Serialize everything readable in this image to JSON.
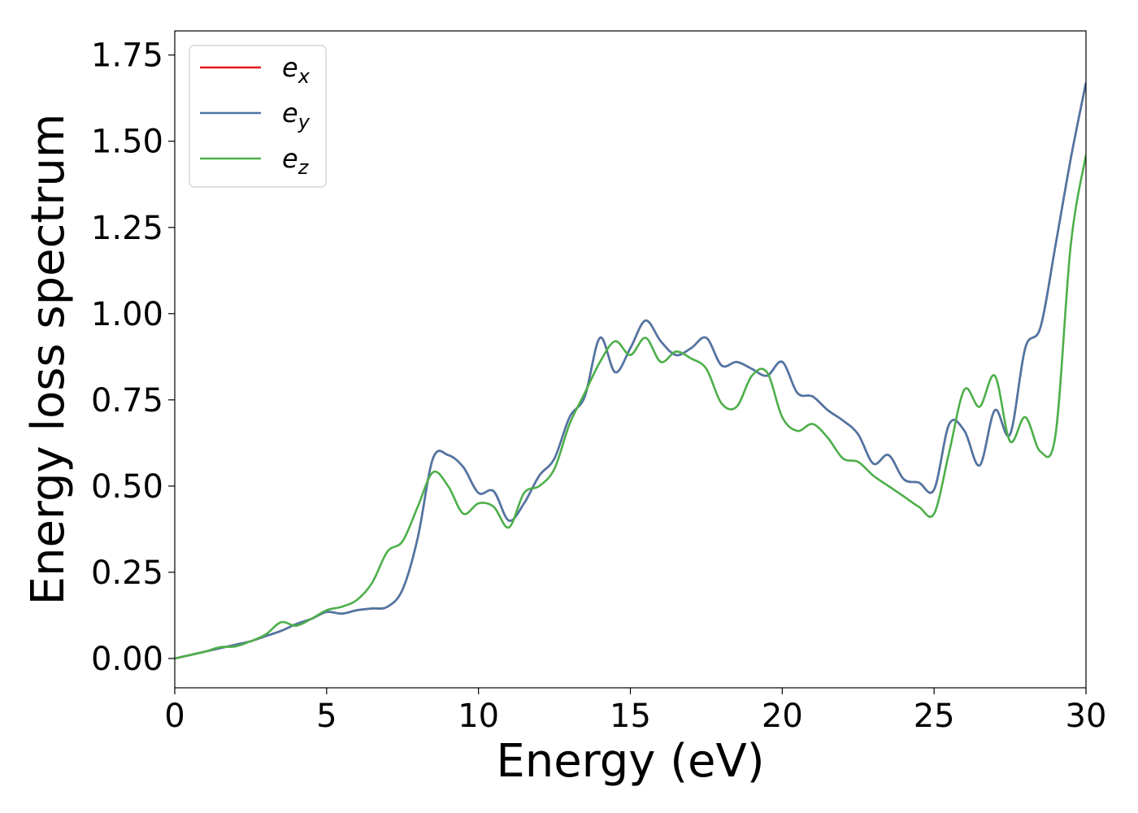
{
  "chart_data": {
    "type": "line",
    "title": "",
    "xlabel": "Energy (eV)",
    "ylabel": "Energy loss spectrum",
    "xlim": [
      0,
      30
    ],
    "ylim": [
      -0.085,
      1.82
    ],
    "xticks": [
      0,
      5,
      10,
      15,
      20,
      25,
      30
    ],
    "xtick_labels": [
      "0",
      "5",
      "10",
      "15",
      "20",
      "25",
      "30"
    ],
    "yticks": [
      0,
      0.25,
      0.5,
      0.75,
      1.0,
      1.25,
      1.5,
      1.75
    ],
    "ytick_labels": [
      "0.00",
      "0.25",
      "0.50",
      "0.75",
      "1.00",
      "1.25",
      "1.50",
      "1.75"
    ],
    "grid": false,
    "legend_position": "top-left",
    "series": [
      {
        "name": "e",
        "subscript": "x",
        "color": "#e41a1c",
        "points": [
          [
            0,
            0
          ],
          [
            0.5,
            0.01
          ],
          [
            1,
            0.02
          ],
          [
            1.5,
            0.03
          ],
          [
            2,
            0.04
          ],
          [
            2.5,
            0.05
          ],
          [
            3,
            0.065
          ],
          [
            3.5,
            0.08
          ],
          [
            4,
            0.1
          ],
          [
            4.5,
            0.115
          ],
          [
            5,
            0.135
          ],
          [
            5.5,
            0.13
          ],
          [
            6,
            0.14
          ],
          [
            6.5,
            0.145
          ],
          [
            7,
            0.15
          ],
          [
            7.5,
            0.2
          ],
          [
            8,
            0.35
          ],
          [
            8.5,
            0.58
          ],
          [
            9,
            0.59
          ],
          [
            9.5,
            0.555
          ],
          [
            10,
            0.48
          ],
          [
            10.5,
            0.485
          ],
          [
            11,
            0.4
          ],
          [
            11.5,
            0.45
          ],
          [
            12,
            0.53
          ],
          [
            12.5,
            0.58
          ],
          [
            13,
            0.7
          ],
          [
            13.5,
            0.76
          ],
          [
            14,
            0.93
          ],
          [
            14.5,
            0.83
          ],
          [
            15,
            0.9
          ],
          [
            15.5,
            0.98
          ],
          [
            16,
            0.92
          ],
          [
            16.5,
            0.88
          ],
          [
            17,
            0.9
          ],
          [
            17.5,
            0.93
          ],
          [
            18,
            0.85
          ],
          [
            18.5,
            0.86
          ],
          [
            19,
            0.84
          ],
          [
            19.5,
            0.82
          ],
          [
            20,
            0.86
          ],
          [
            20.5,
            0.77
          ],
          [
            21,
            0.76
          ],
          [
            21.5,
            0.72
          ],
          [
            22,
            0.69
          ],
          [
            22.5,
            0.65
          ],
          [
            23,
            0.565
          ],
          [
            23.5,
            0.59
          ],
          [
            24,
            0.52
          ],
          [
            24.5,
            0.51
          ],
          [
            25,
            0.49
          ],
          [
            25.5,
            0.68
          ],
          [
            26,
            0.66
          ],
          [
            26.5,
            0.56
          ],
          [
            27,
            0.72
          ],
          [
            27.5,
            0.65
          ],
          [
            28,
            0.9
          ],
          [
            28.5,
            0.96
          ],
          [
            29,
            1.2
          ],
          [
            29.5,
            1.45
          ],
          [
            30,
            1.67
          ]
        ]
      },
      {
        "name": "e",
        "subscript": "y",
        "color": "#4c77a7",
        "points": [
          [
            0,
            0
          ],
          [
            0.5,
            0.01
          ],
          [
            1,
            0.02
          ],
          [
            1.5,
            0.03
          ],
          [
            2,
            0.04
          ],
          [
            2.5,
            0.05
          ],
          [
            3,
            0.065
          ],
          [
            3.5,
            0.08
          ],
          [
            4,
            0.1
          ],
          [
            4.5,
            0.115
          ],
          [
            5,
            0.135
          ],
          [
            5.5,
            0.13
          ],
          [
            6,
            0.14
          ],
          [
            6.5,
            0.145
          ],
          [
            7,
            0.15
          ],
          [
            7.5,
            0.2
          ],
          [
            8,
            0.35
          ],
          [
            8.5,
            0.58
          ],
          [
            9,
            0.59
          ],
          [
            9.5,
            0.555
          ],
          [
            10,
            0.48
          ],
          [
            10.5,
            0.485
          ],
          [
            11,
            0.4
          ],
          [
            11.5,
            0.45
          ],
          [
            12,
            0.53
          ],
          [
            12.5,
            0.58
          ],
          [
            13,
            0.7
          ],
          [
            13.5,
            0.76
          ],
          [
            14,
            0.93
          ],
          [
            14.5,
            0.83
          ],
          [
            15,
            0.9
          ],
          [
            15.5,
            0.98
          ],
          [
            16,
            0.92
          ],
          [
            16.5,
            0.88
          ],
          [
            17,
            0.9
          ],
          [
            17.5,
            0.93
          ],
          [
            18,
            0.85
          ],
          [
            18.5,
            0.86
          ],
          [
            19,
            0.84
          ],
          [
            19.5,
            0.82
          ],
          [
            20,
            0.86
          ],
          [
            20.5,
            0.77
          ],
          [
            21,
            0.76
          ],
          [
            21.5,
            0.72
          ],
          [
            22,
            0.69
          ],
          [
            22.5,
            0.65
          ],
          [
            23,
            0.565
          ],
          [
            23.5,
            0.59
          ],
          [
            24,
            0.52
          ],
          [
            24.5,
            0.51
          ],
          [
            25,
            0.49
          ],
          [
            25.5,
            0.68
          ],
          [
            26,
            0.66
          ],
          [
            26.5,
            0.56
          ],
          [
            27,
            0.72
          ],
          [
            27.5,
            0.65
          ],
          [
            28,
            0.9
          ],
          [
            28.5,
            0.96
          ],
          [
            29,
            1.2
          ],
          [
            29.5,
            1.45
          ],
          [
            30,
            1.67
          ]
        ]
      },
      {
        "name": "e",
        "subscript": "z",
        "color": "#4daf4a",
        "points": [
          [
            0,
            0
          ],
          [
            0.5,
            0.01
          ],
          [
            1,
            0.02
          ],
          [
            1.5,
            0.033
          ],
          [
            2,
            0.035
          ],
          [
            2.5,
            0.05
          ],
          [
            3,
            0.07
          ],
          [
            3.5,
            0.105
          ],
          [
            4,
            0.095
          ],
          [
            4.5,
            0.115
          ],
          [
            5,
            0.14
          ],
          [
            5.5,
            0.15
          ],
          [
            6,
            0.17
          ],
          [
            6.5,
            0.22
          ],
          [
            7,
            0.31
          ],
          [
            7.5,
            0.34
          ],
          [
            8,
            0.44
          ],
          [
            8.5,
            0.54
          ],
          [
            9,
            0.5
          ],
          [
            9.5,
            0.42
          ],
          [
            10,
            0.45
          ],
          [
            10.5,
            0.44
          ],
          [
            11,
            0.38
          ],
          [
            11.5,
            0.48
          ],
          [
            12,
            0.5
          ],
          [
            12.5,
            0.55
          ],
          [
            13,
            0.68
          ],
          [
            13.5,
            0.77
          ],
          [
            14,
            0.86
          ],
          [
            14.5,
            0.92
          ],
          [
            15,
            0.88
          ],
          [
            15.5,
            0.93
          ],
          [
            16,
            0.86
          ],
          [
            16.5,
            0.89
          ],
          [
            17,
            0.87
          ],
          [
            17.5,
            0.84
          ],
          [
            18,
            0.74
          ],
          [
            18.5,
            0.73
          ],
          [
            19,
            0.82
          ],
          [
            19.5,
            0.83
          ],
          [
            20,
            0.7
          ],
          [
            20.5,
            0.66
          ],
          [
            21,
            0.68
          ],
          [
            21.5,
            0.64
          ],
          [
            22,
            0.58
          ],
          [
            22.5,
            0.57
          ],
          [
            23,
            0.53
          ],
          [
            23.5,
            0.5
          ],
          [
            24,
            0.47
          ],
          [
            24.5,
            0.44
          ],
          [
            25,
            0.42
          ],
          [
            25.5,
            0.6
          ],
          [
            26,
            0.78
          ],
          [
            26.5,
            0.73
          ],
          [
            27,
            0.82
          ],
          [
            27.5,
            0.63
          ],
          [
            28,
            0.7
          ],
          [
            28.5,
            0.6
          ],
          [
            29,
            0.65
          ],
          [
            29.5,
            1.2
          ],
          [
            30,
            1.46
          ]
        ]
      }
    ]
  }
}
